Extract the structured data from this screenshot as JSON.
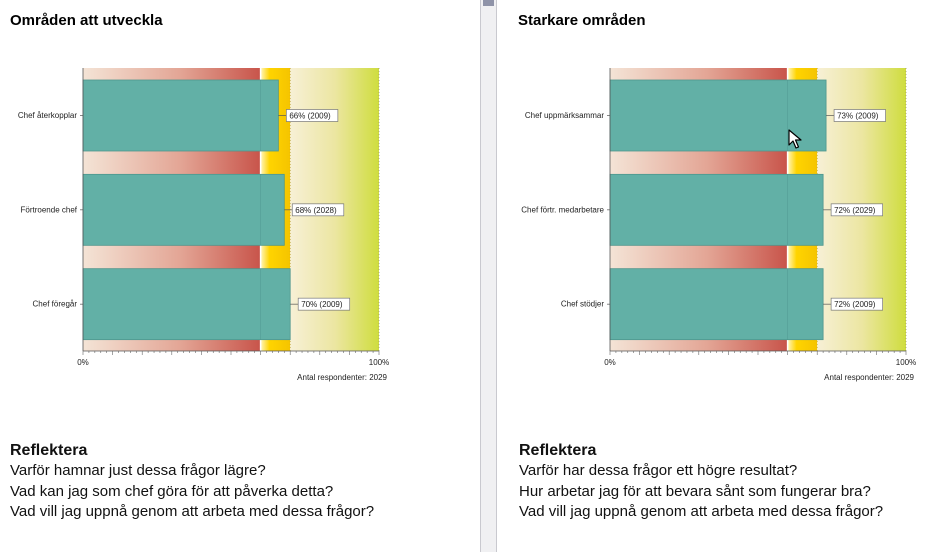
{
  "left": {
    "title": "Områden att utveckla",
    "reflect_heading": "Reflektera",
    "reflect_questions": [
      "Varför hamnar just dessa frågor lägre?",
      "Vad kan jag som chef göra för att påverka detta?",
      "Vad vill jag uppnå genom att arbeta med dessa frågor?"
    ]
  },
  "right": {
    "title": "Starkare områden",
    "reflect_heading": "Reflektera",
    "reflect_questions": [
      "Varför har dessa frågor ett högre resultat?",
      "Hur arbetar jag för att bevara sånt som fungerar bra?",
      "Vad vill jag uppnå genom att arbeta med dessa frågor?"
    ]
  },
  "chart_data": [
    {
      "type": "bar",
      "orientation": "horizontal",
      "categories": [
        "Chef återkopplar",
        "Förtroende chef",
        "Chef föregår"
      ],
      "values": [
        66,
        68,
        70
      ],
      "data_labels": [
        "66% (2009)",
        "68% (2028)",
        "70% (2009)"
      ],
      "xlim": [
        0,
        100
      ],
      "x_tick_labels": [
        "0%",
        "100%"
      ],
      "bands": [
        {
          "from": 0,
          "to": 60,
          "color": "#c8544a"
        },
        {
          "from": 60,
          "to": 70,
          "color": "#ffd400"
        },
        {
          "from": 70,
          "to": 100,
          "color": "#cfdd3e"
        }
      ],
      "bar_color": "#62b0a6",
      "footnote": "Antal respondenter: 2029"
    },
    {
      "type": "bar",
      "orientation": "horizontal",
      "categories": [
        "Chef uppmärksammar",
        "Chef förtr. medarbetare",
        "Chef stödjer"
      ],
      "values": [
        73,
        72,
        72
      ],
      "data_labels": [
        "73% (2009)",
        "72% (2029)",
        "72% (2009)"
      ],
      "xlim": [
        0,
        100
      ],
      "x_tick_labels": [
        "0%",
        "100%"
      ],
      "bands": [
        {
          "from": 0,
          "to": 60,
          "color": "#c8544a"
        },
        {
          "from": 60,
          "to": 70,
          "color": "#ffd400"
        },
        {
          "from": 70,
          "to": 100,
          "color": "#cfdd3e"
        }
      ],
      "bar_color": "#62b0a6",
      "footnote": "Antal respondenter: 2029"
    }
  ]
}
